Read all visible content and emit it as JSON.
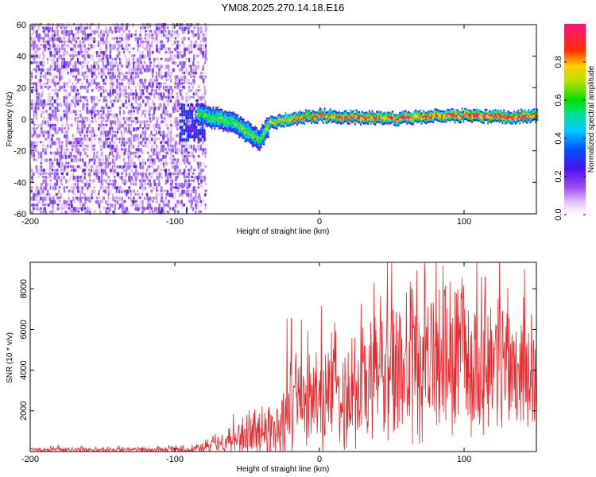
{
  "title": "YM08.2025.270.14.18.E16",
  "chart_data": [
    {
      "type": "heatmap",
      "name": "spectrogram",
      "title": "YM08.2025.270.14.18.E16",
      "xlabel": "Height of straight line (km)",
      "ylabel": "Frequency (Hz)",
      "xlim": [
        -200,
        150
      ],
      "ylim": [
        -60,
        60
      ],
      "xticks": [
        -200,
        -100,
        0,
        100
      ],
      "yticks": [
        -60,
        -40,
        -20,
        0,
        20,
        40,
        60
      ],
      "colorbar": {
        "label": "Normalized spectral amplitude",
        "range": [
          0,
          1
        ],
        "ticks": [
          "0.0",
          "0.2",
          "0.4",
          "0.6",
          "0.8"
        ],
        "colormap": "rainbow (white-purple-blue-cyan-green-yellow-red-pink)"
      },
      "regions": [
        {
          "description": "broadband noise",
          "x_range": [
            -200,
            -80
          ],
          "freq_range": [
            -60,
            60
          ],
          "amplitude_range": [
            0.05,
            0.25
          ]
        },
        {
          "description": "emerging signal",
          "x_range": [
            -97,
            -80
          ],
          "freq_range": [
            -14,
            10
          ],
          "amplitude_range": [
            0.2,
            0.35
          ]
        }
      ],
      "ridge": {
        "description": "narrowband signal near 0 Hz",
        "points": [
          {
            "x": -85,
            "freq": 3,
            "amplitude": 0.5
          },
          {
            "x": -70,
            "freq": 0,
            "amplitude": 0.55
          },
          {
            "x": -60,
            "freq": -3,
            "amplitude": 0.5
          },
          {
            "x": -50,
            "freq": -9,
            "amplitude": 0.55
          },
          {
            "x": -42,
            "freq": -14,
            "amplitude": 0.5
          },
          {
            "x": -35,
            "freq": -3,
            "amplitude": 0.6
          },
          {
            "x": -20,
            "freq": 0,
            "amplitude": 0.7
          },
          {
            "x": 0,
            "freq": 2,
            "amplitude": 0.75
          },
          {
            "x": 20,
            "freq": 1,
            "amplitude": 0.75
          },
          {
            "x": 50,
            "freq": 0,
            "amplitude": 0.8
          },
          {
            "x": 80,
            "freq": 2,
            "amplitude": 0.8
          },
          {
            "x": 100,
            "freq": 2,
            "amplitude": 0.85
          },
          {
            "x": 130,
            "freq": 1,
            "amplitude": 0.85
          },
          {
            "x": 150,
            "freq": 2,
            "amplitude": 0.8
          }
        ]
      }
    },
    {
      "type": "line",
      "name": "snr",
      "xlabel": "Height of straight line (km)",
      "ylabel": "SNR (10 * v/v)",
      "xlim": [
        -200,
        150
      ],
      "ylim": [
        0,
        9300
      ],
      "xticks": [
        -200,
        -100,
        0,
        100
      ],
      "yticks": [
        2000,
        4000,
        6000,
        8000
      ],
      "color": "#e8262c",
      "series": [
        {
          "name": "SNR",
          "x": [
            -200,
            -150,
            -120,
            -90,
            -80,
            -70,
            -60,
            -50,
            -40,
            -30,
            -25,
            -20,
            -10,
            0,
            10,
            20,
            30,
            35,
            40,
            50,
            60,
            70,
            80,
            90,
            100,
            110,
            120,
            130,
            140,
            150
          ],
          "mid": [
            100,
            100,
            100,
            100,
            200,
            400,
            700,
            900,
            900,
            1200,
            1600,
            2300,
            2600,
            2700,
            3000,
            3100,
            3300,
            3800,
            4000,
            4200,
            4200,
            4300,
            4400,
            4400,
            4400,
            4500,
            4600,
            4400,
            4100,
            3800
          ],
          "amp": [
            150,
            150,
            150,
            200,
            350,
            700,
            1300,
            1500,
            1500,
            1900,
            2500,
            2900,
            3100,
            3300,
            3800,
            3800,
            4300,
            4600,
            4800,
            5000,
            4800,
            4900,
            5000,
            5000,
            4800,
            4500,
            4300,
            4200,
            3900,
            3500
          ]
        }
      ]
    }
  ]
}
